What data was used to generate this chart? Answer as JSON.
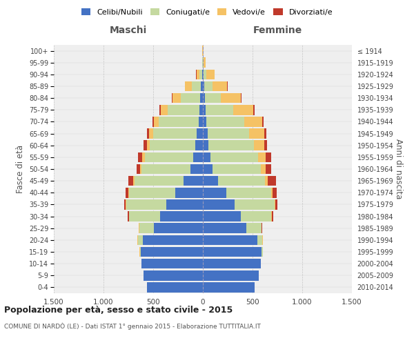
{
  "age_groups": [
    "0-4",
    "5-9",
    "10-14",
    "15-19",
    "20-24",
    "25-29",
    "30-34",
    "35-39",
    "40-44",
    "45-49",
    "50-54",
    "55-59",
    "60-64",
    "65-69",
    "70-74",
    "75-79",
    "80-84",
    "85-89",
    "90-94",
    "95-99",
    "100+"
  ],
  "birth_years": [
    "2010-2014",
    "2005-2009",
    "2000-2004",
    "1995-1999",
    "1990-1994",
    "1985-1989",
    "1980-1984",
    "1975-1979",
    "1970-1974",
    "1965-1969",
    "1960-1964",
    "1955-1959",
    "1950-1954",
    "1945-1949",
    "1940-1944",
    "1935-1939",
    "1930-1934",
    "1925-1929",
    "1920-1924",
    "1915-1919",
    "≤ 1914"
  ],
  "male_celibe": [
    560,
    595,
    615,
    625,
    605,
    490,
    430,
    370,
    280,
    195,
    125,
    95,
    75,
    60,
    45,
    35,
    25,
    18,
    5,
    2,
    2
  ],
  "male_coniugato": [
    0,
    1,
    2,
    10,
    50,
    150,
    310,
    400,
    460,
    490,
    490,
    490,
    460,
    440,
    400,
    320,
    200,
    90,
    30,
    3,
    1
  ],
  "male_vedovo": [
    0,
    0,
    0,
    1,
    2,
    3,
    5,
    5,
    10,
    15,
    20,
    25,
    30,
    40,
    50,
    70,
    80,
    70,
    30,
    5,
    1
  ],
  "male_divorziato": [
    0,
    0,
    0,
    1,
    3,
    5,
    10,
    15,
    30,
    50,
    30,
    40,
    30,
    20,
    12,
    10,
    8,
    5,
    2,
    0,
    0
  ],
  "female_celibe": [
    520,
    560,
    580,
    590,
    550,
    440,
    380,
    320,
    235,
    155,
    100,
    75,
    55,
    48,
    35,
    28,
    20,
    15,
    5,
    2,
    2
  ],
  "female_coniugato": [
    0,
    1,
    2,
    15,
    50,
    150,
    310,
    400,
    450,
    470,
    480,
    480,
    460,
    420,
    380,
    280,
    160,
    80,
    30,
    3,
    1
  ],
  "female_vedova": [
    0,
    0,
    0,
    1,
    2,
    3,
    5,
    10,
    15,
    30,
    50,
    80,
    100,
    150,
    180,
    200,
    200,
    150,
    80,
    20,
    1
  ],
  "female_divorziata": [
    0,
    0,
    0,
    1,
    2,
    5,
    10,
    20,
    40,
    80,
    60,
    50,
    30,
    20,
    15,
    12,
    8,
    5,
    2,
    0,
    0
  ],
  "color_celibe": "#4472C4",
  "color_coniugato": "#C5D9A0",
  "color_vedovo": "#F5C265",
  "color_divorziato": "#C0392B",
  "title": "Popolazione per età, sesso e stato civile - 2015",
  "subtitle": "COMUNE DI NARDÒ (LE) - Dati ISTAT 1° gennaio 2015 - Elaborazione TUTTITALIA.IT",
  "xlabel_left": "Maschi",
  "xlabel_right": "Femmine",
  "ylabel_left": "Fasce di età",
  "ylabel_right": "Anni di nascita",
  "xlim": 1500,
  "bg_color": "#ffffff",
  "grid_color": "#bbbbbb"
}
